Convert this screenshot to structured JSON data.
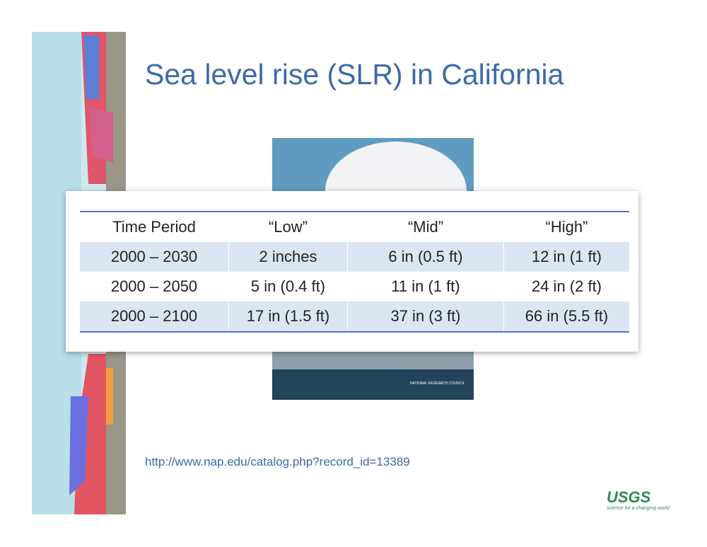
{
  "header": {
    "title": "Sea level rise (SLR) in California"
  },
  "table": {
    "columns": [
      "Time Period",
      "“Low”",
      "“Mid”",
      "“High”"
    ],
    "rows": [
      [
        "2000 – 2030",
        "2 inches",
        "6 in (0.5 ft)",
        "12 in (1 ft)"
      ],
      [
        "2000 – 2050",
        "5 in (0.4 ft)",
        "11 in (1 ft)",
        "24 in (2 ft)"
      ],
      [
        "2000 – 2100",
        "17 in (1.5 ft)",
        "37 in (3 ft)",
        "66 in (5.5 ft)"
      ]
    ]
  },
  "cover": {
    "publisher": "NATIONAL RESEARCH COUNCIL"
  },
  "link": {
    "url": "http://www.nap.edu/catalog.php?record_id=13389"
  },
  "logo": {
    "name": "USGS",
    "tagline": "science for a changing world"
  }
}
